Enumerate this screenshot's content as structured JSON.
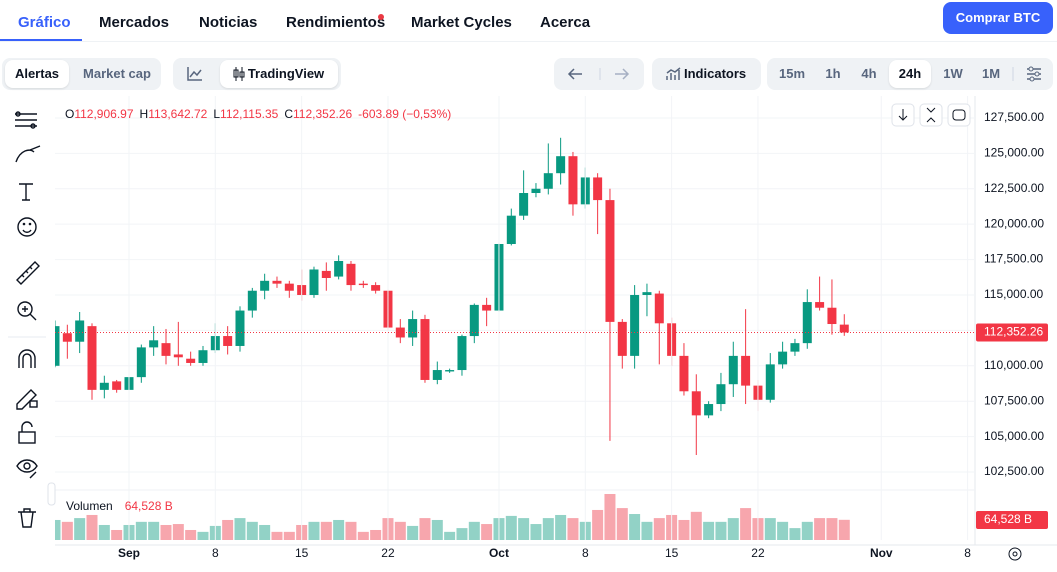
{
  "nav": {
    "tabs": [
      "Gráfico",
      "Mercados",
      "Noticias",
      "Rendimientos",
      "Market Cycles",
      "Acerca"
    ],
    "button": "Comprar BTC"
  },
  "toolbar": {
    "view": [
      "Alertas",
      "Market cap"
    ],
    "chart_style": "TradingView",
    "indicators": "Indicators",
    "intervals": [
      "15m",
      "1h",
      "4h",
      "24h",
      "1W",
      "1M"
    ],
    "active_interval": "24h"
  },
  "chart_data": {
    "type": "candlestick",
    "ohlc_header": [
      {
        "key": "O",
        "value": "112,906.97"
      },
      {
        "key": "H",
        "value": "113,642.72"
      },
      {
        "key": "L",
        "value": "112,115.35"
      },
      {
        "key": "C",
        "value": "112,352.26"
      }
    ],
    "change": "-603.89 (−0,53%)",
    "up_color": "#089981",
    "down_color": "#f23645",
    "up_volume_color": "#92d2c6",
    "down_volume_color": "#f7a6ad",
    "open": [
      110000,
      112300,
      111700,
      112800,
      108300,
      108900,
      108300,
      109200,
      111300,
      111600,
      110800,
      110500,
      110200,
      111100,
      112100,
      111400,
      113900,
      115300,
      116000,
      115800,
      115700,
      115000,
      116700,
      116300,
      117200,
      115800,
      115700,
      115300,
      112700,
      112000,
      113300,
      109000,
      109600,
      109700,
      112100,
      114300,
      113900,
      118600,
      120600,
      122200,
      122500,
      123600,
      124800,
      121400,
      123300,
      121700,
      113100,
      110700,
      115000,
      115100,
      113000,
      110700,
      108200,
      106500,
      107300,
      108700,
      110700,
      108600,
      107600,
      110100,
      111000,
      111600,
      114500,
      114100,
      112906.97
    ],
    "high": [
      113200,
      112900,
      113800,
      113000,
      109300,
      109000,
      110000,
      111500,
      112800,
      112600,
      113100,
      111000,
      111400,
      113000,
      112800,
      114200,
      115500,
      116500,
      116300,
      116000,
      116800,
      117000,
      117300,
      117800,
      117400,
      116000,
      115900,
      115400,
      113300,
      113900,
      113600,
      110300,
      109800,
      112200,
      114400,
      114800,
      118700,
      121100,
      123800,
      122900,
      125700,
      126100,
      125100,
      124000,
      123600,
      122500,
      113300,
      115700,
      115800,
      115300,
      113400,
      111600,
      109400,
      107500,
      109500,
      111700,
      114000,
      109000,
      110900,
      111700,
      111900,
      115400,
      116300,
      116100,
      113642.72
    ],
    "low": [
      109900,
      110500,
      110900,
      107600,
      107700,
      108100,
      107500,
      108800,
      110700,
      110100,
      110000,
      110000,
      110000,
      110900,
      110800,
      111000,
      113400,
      114700,
      115500,
      114800,
      114600,
      114800,
      115300,
      116100,
      115300,
      115500,
      115100,
      112500,
      111600,
      111400,
      108800,
      108700,
      109500,
      109300,
      111600,
      112800,
      113800,
      118500,
      120300,
      121900,
      122100,
      122800,
      120600,
      121100,
      119300,
      104700,
      109800,
      109800,
      113500,
      110100,
      110000,
      107900,
      103700,
      106300,
      106800,
      107800,
      107300,
      106800,
      107400,
      109800,
      110700,
      111200,
      113900,
      112200,
      112115.35
    ],
    "close": [
      112800,
      111700,
      113200,
      108300,
      108800,
      108300,
      109200,
      111300,
      111800,
      110700,
      110600,
      110200,
      111100,
      112100,
      111400,
      113900,
      115300,
      116000,
      115800,
      115300,
      115000,
      116800,
      116200,
      117400,
      115700,
      115700,
      115300,
      112700,
      112000,
      113300,
      109000,
      109700,
      109700,
      112100,
      114300,
      113900,
      118600,
      120600,
      122200,
      122500,
      123600,
      124800,
      121400,
      123300,
      121700,
      113100,
      110700,
      115000,
      115200,
      113000,
      110700,
      108200,
      106500,
      107300,
      108700,
      110700,
      108600,
      107600,
      110100,
      111000,
      111600,
      114500,
      114100,
      112950,
      112352.26
    ],
    "volume": {
      "name": "Volumen",
      "values": [
        64,
        58,
        70,
        80,
        48,
        32,
        48,
        58,
        58,
        48,
        51,
        32,
        26,
        45,
        64,
        70,
        58,
        48,
        26,
        26,
        48,
        58,
        58,
        64,
        58,
        26,
        32,
        70,
        58,
        45,
        70,
        64,
        26,
        38,
        58,
        51,
        70,
        77,
        70,
        51,
        70,
        80,
        70,
        58,
        96,
        147,
        102,
        83,
        58,
        70,
        80,
        64,
        90,
        58,
        58,
        70,
        102,
        70,
        70,
        58,
        38,
        58,
        70,
        70,
        64.528
      ],
      "value_label": "64,528 B"
    },
    "last_price_label": "112,352.26",
    "ylim": [
      101230,
      129050
    ],
    "yticks": [
      {
        "value": 102500,
        "label": "102,500.00"
      },
      {
        "value": 105000,
        "label": "105,000.00"
      },
      {
        "value": 107500,
        "label": "107,500.00"
      },
      {
        "value": 110000,
        "label": "110,000.00"
      },
      {
        "value": 112500,
        "label": "112,500.00"
      },
      {
        "value": 115000,
        "label": "115,000.00"
      },
      {
        "value": 117500,
        "label": "117,500.00"
      },
      {
        "value": 120000,
        "label": "120,000.00"
      },
      {
        "value": 122500,
        "label": "122,500.00"
      },
      {
        "value": 125000,
        "label": "125,000.00"
      },
      {
        "value": 127500,
        "label": "127,500.00"
      }
    ],
    "xlim": [
      0,
      74.6
    ],
    "xticks": [
      {
        "value": 6,
        "label": "Sep"
      },
      {
        "value": 13,
        "label": "8"
      },
      {
        "value": 20,
        "label": "15"
      },
      {
        "value": 27,
        "label": "22"
      },
      {
        "value": 36,
        "label": "Oct"
      },
      {
        "value": 43,
        "label": "8"
      },
      {
        "value": 50,
        "label": "15"
      },
      {
        "value": 57,
        "label": "22"
      },
      {
        "value": 67,
        "label": "Nov"
      },
      {
        "value": 74,
        "label": "8"
      }
    ],
    "grid": true
  }
}
